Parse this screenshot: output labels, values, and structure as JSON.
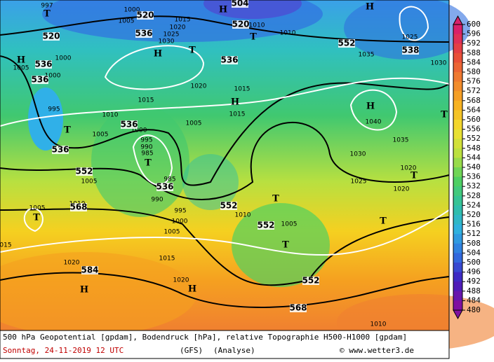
{
  "map": {
    "geopotential_labels": [
      "520",
      "520",
      "520",
      "536",
      "536",
      "536",
      "536",
      "536",
      "536",
      "536",
      "538",
      "552",
      "552",
      "552",
      "552",
      "552",
      "568",
      "568",
      "584",
      "504"
    ],
    "isobar_labels": [
      "1000",
      "1005",
      "1015",
      "1020",
      "1025",
      "1030",
      "1010",
      "1010",
      "1025",
      "1035",
      "1030",
      "1020",
      "1015",
      "1015",
      "1010",
      "1015",
      "1005",
      "1005",
      "1000",
      "995",
      "990",
      "985",
      "1040",
      "1035",
      "1030",
      "1025",
      "1020",
      "1020",
      "1005",
      "1010",
      "1005",
      "995",
      "1000",
      "1005",
      "1010",
      "1005",
      "1015",
      "1020",
      "1020",
      "1010",
      "995",
      "1000",
      "1005",
      "1000",
      "015",
      "990",
      "985",
      "997"
    ],
    "high_markers": [
      "H",
      "H",
      "H",
      "H",
      "H",
      "H",
      "H",
      "H"
    ],
    "low_markers": [
      "T",
      "T",
      "T",
      "T",
      "T",
      "T",
      "T",
      "T",
      "T",
      "T",
      "T"
    ]
  },
  "colorbar": {
    "levels": [
      600,
      596,
      592,
      588,
      584,
      580,
      576,
      572,
      568,
      564,
      560,
      556,
      552,
      548,
      544,
      540,
      536,
      532,
      528,
      524,
      520,
      516,
      512,
      508,
      504,
      500,
      496,
      492,
      488,
      484,
      480
    ],
    "colors": [
      "#d8206a",
      "#e84a3a",
      "#f08030",
      "#f7b020",
      "#f2e030",
      "#b8e040",
      "#50d060",
      "#30c0a0",
      "#30b0e0",
      "#3070e0",
      "#4020c0",
      "#8010a0"
    ]
  },
  "footer": {
    "line1": "500 hPa Geopotential [gpdam], Bodendruck [hPa], relative Topographie H500-H1000 [gpdam]",
    "date": "Sonntag, 24-11-2019  12 UTC",
    "model": "(GFS)",
    "mode": "(Analyse)",
    "credit": "© www.wetter3.de"
  }
}
